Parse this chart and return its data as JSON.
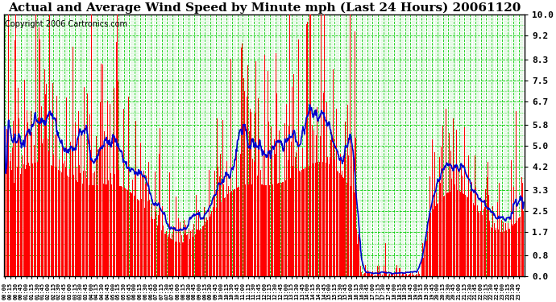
{
  "title": "Actual and Average Wind Speed by Minute mph (Last 24 Hours) 20061120",
  "copyright": "Copyright 2006 Cartronics.com",
  "yticks": [
    0.0,
    0.8,
    1.7,
    2.5,
    3.3,
    4.2,
    5.0,
    5.8,
    6.7,
    7.5,
    8.3,
    9.2,
    10.0
  ],
  "ymin": 0.0,
  "ymax": 10.0,
  "bar_color": "#FF0000",
  "line_color": "#0000CC",
  "grid_color": "#00CC00",
  "bg_color": "#FFFFFF",
  "plot_bg_color": "#FFFFFF",
  "title_fontsize": 11,
  "copyright_fontsize": 7,
  "n_points": 1440,
  "xtick_interval": 15,
  "avg_window": 30
}
